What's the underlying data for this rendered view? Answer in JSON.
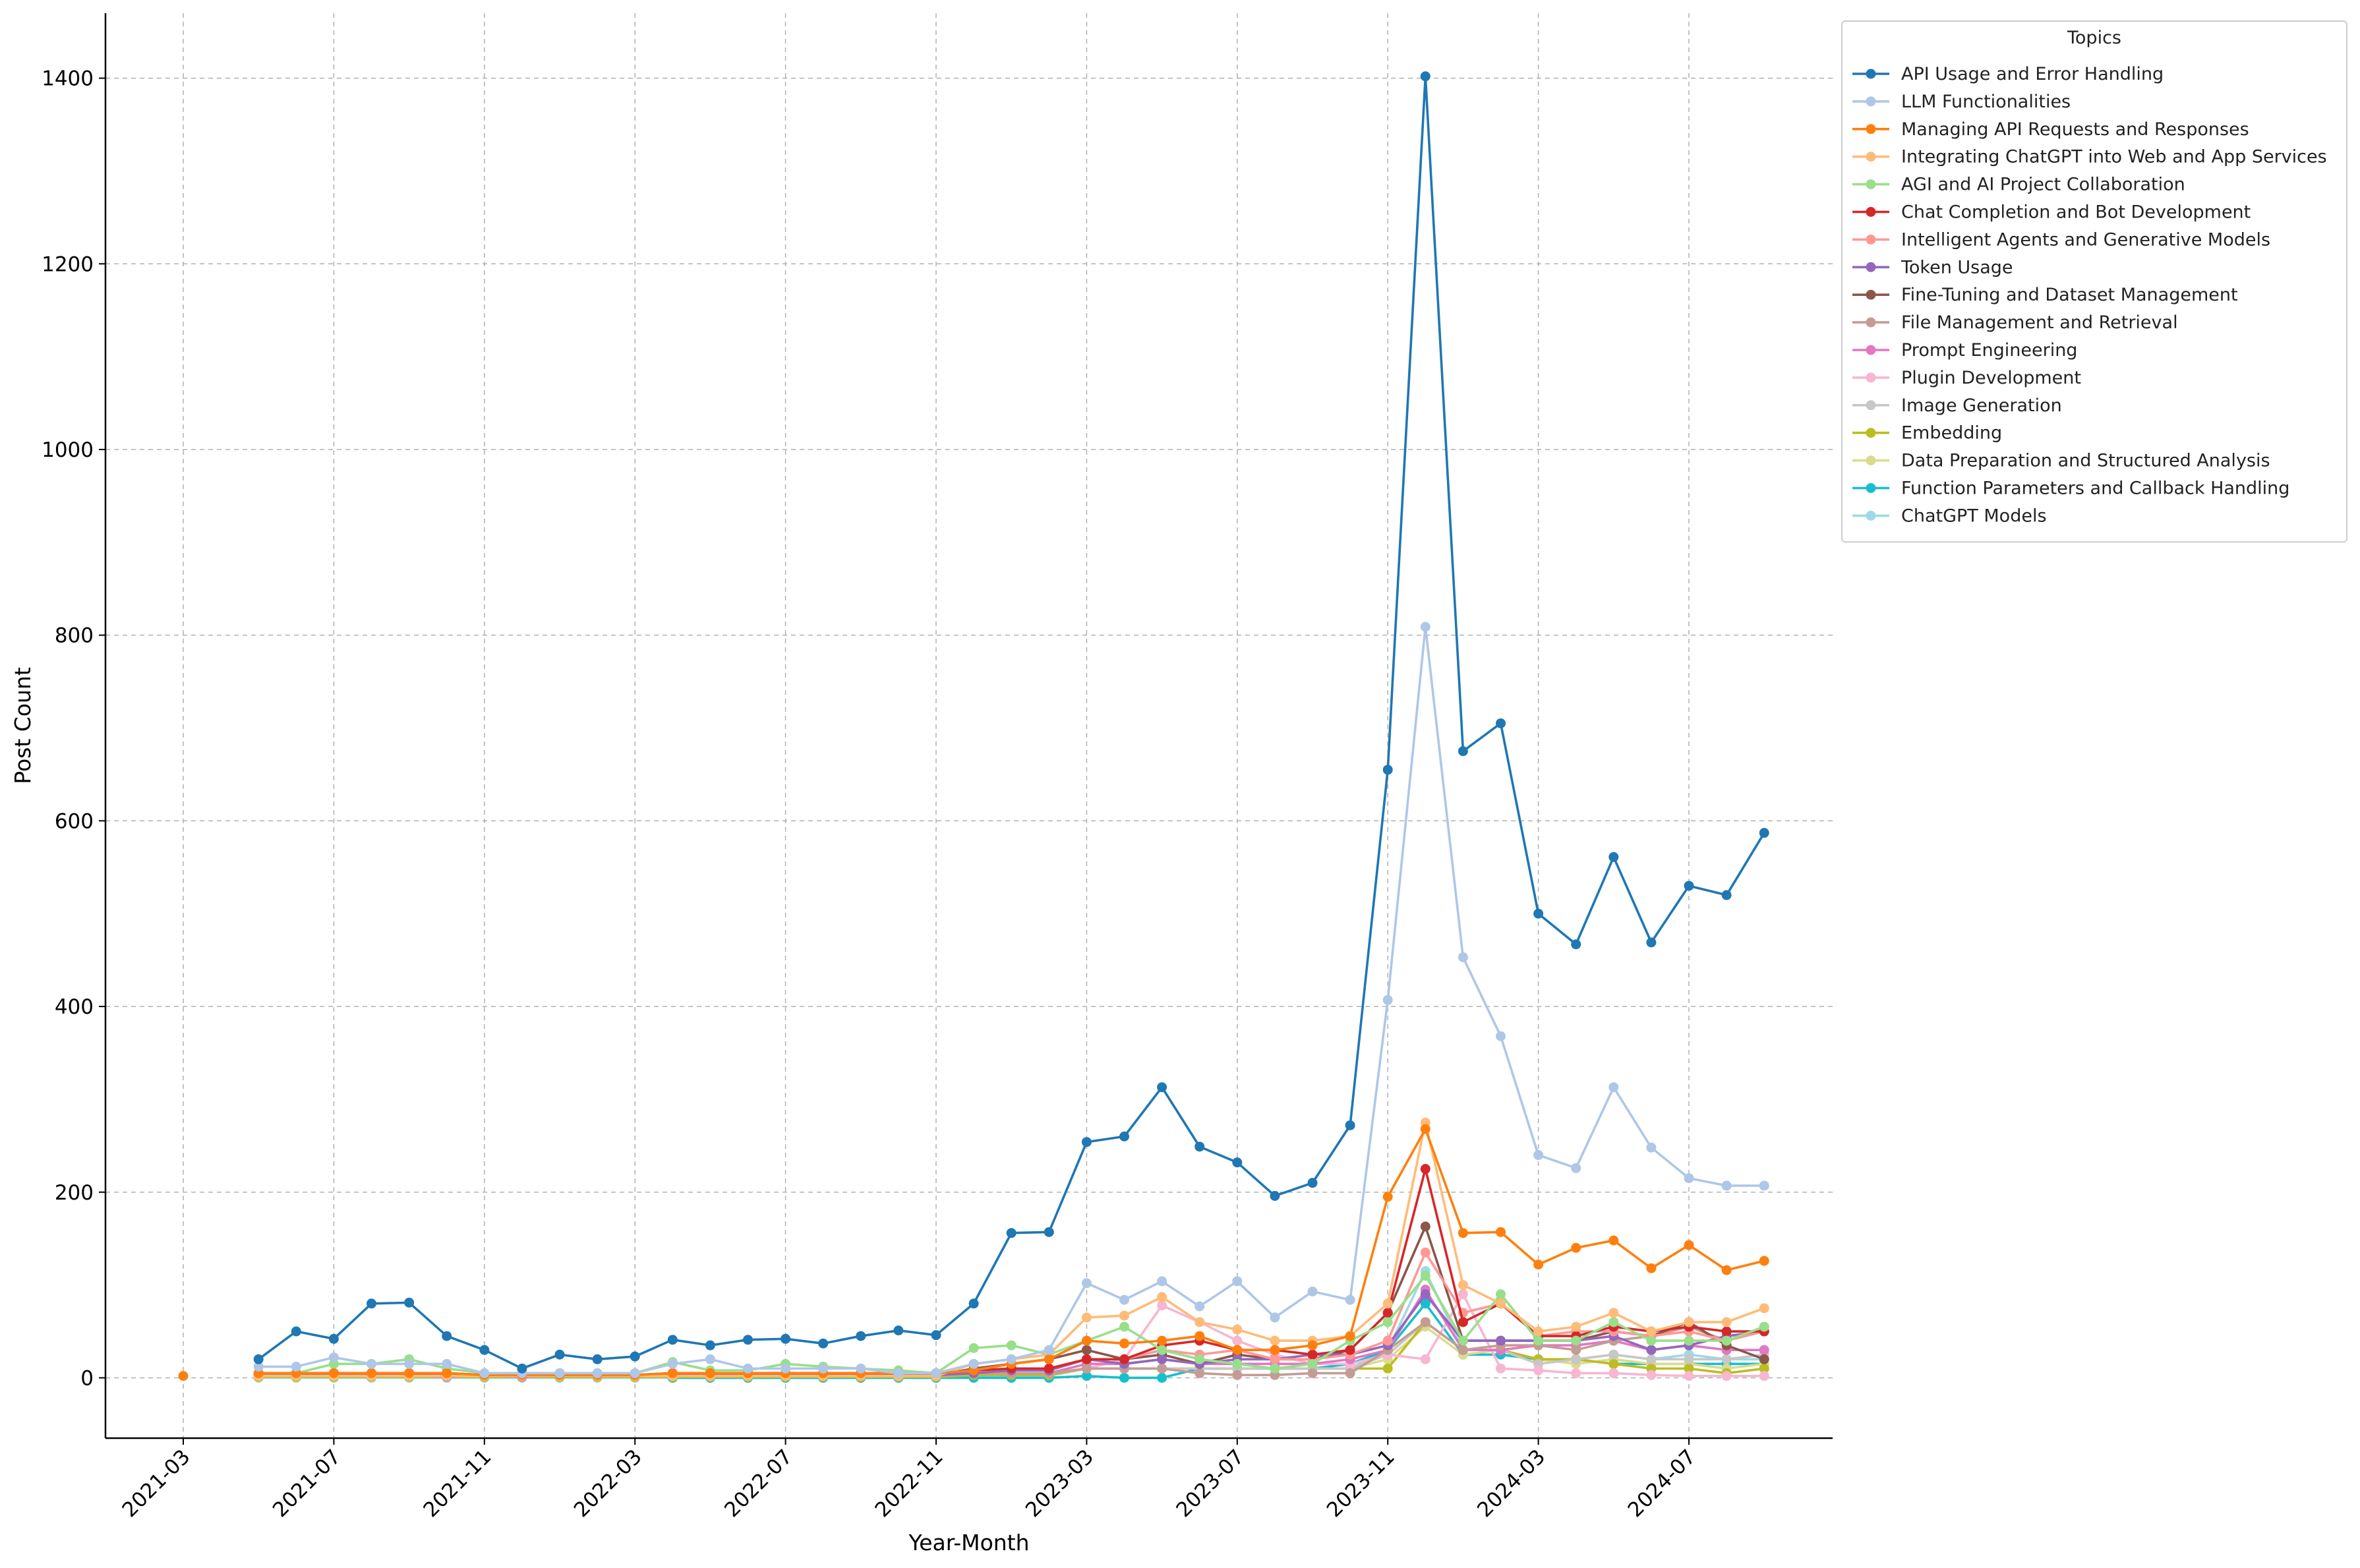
{
  "chart_data": {
    "type": "line",
    "title": "",
    "xlabel": "Year-Month",
    "ylabel": "Post Count",
    "ylim": [
      -65,
      1470
    ],
    "yticks": [
      0,
      200,
      400,
      600,
      800,
      1000,
      1200,
      1400
    ],
    "x": [
      "2021-03",
      "2021-04",
      "2021-05",
      "2021-06",
      "2021-07",
      "2021-08",
      "2021-09",
      "2021-10",
      "2021-11",
      "2021-12",
      "2022-01",
      "2022-02",
      "2022-03",
      "2022-04",
      "2022-05",
      "2022-06",
      "2022-07",
      "2022-08",
      "2022-09",
      "2022-10",
      "2022-11",
      "2022-12",
      "2023-01",
      "2023-02",
      "2023-03",
      "2023-04",
      "2023-05",
      "2023-06",
      "2023-07",
      "2023-08",
      "2023-09",
      "2023-10",
      "2023-11",
      "2023-12",
      "2024-01",
      "2024-02",
      "2024-03",
      "2024-04",
      "2024-05",
      "2024-06",
      "2024-07",
      "2024-08",
      "2024-09"
    ],
    "xticks": [
      "2021-03",
      "2021-07",
      "2021-11",
      "2022-03",
      "2022-07",
      "2022-11",
      "2023-03",
      "2023-07",
      "2023-11",
      "2024-03",
      "2024-07"
    ],
    "grid": true,
    "legend_title": "Topics",
    "legend_position": "upper right outside",
    "series": [
      {
        "name": "API Usage and Error Handling",
        "color": "#1f77b4",
        "values": [
          null,
          null,
          20,
          50,
          42,
          80,
          81,
          45,
          30,
          10,
          25,
          20,
          23,
          41,
          35,
          41,
          42,
          37,
          45,
          51,
          46,
          80,
          156,
          157,
          254,
          260,
          313,
          249,
          232,
          196,
          210,
          272,
          655,
          1402,
          675,
          705,
          500,
          467,
          561,
          469,
          530,
          520,
          587
        ]
      },
      {
        "name": "LLM Functionalities",
        "color": "#aec7e8",
        "values": [
          null,
          null,
          12,
          12,
          22,
          15,
          15,
          15,
          5,
          5,
          5,
          5,
          5,
          15,
          20,
          10,
          10,
          10,
          10,
          5,
          5,
          15,
          20,
          30,
          102,
          84,
          104,
          77,
          104,
          65,
          93,
          84,
          407,
          809,
          453,
          368,
          240,
          226,
          313,
          248,
          215,
          207,
          207
        ]
      },
      {
        "name": "Managing API Requests and Responses",
        "color": "#ff7f0e",
        "values": [
          2,
          null,
          5,
          5,
          5,
          5,
          5,
          5,
          3,
          3,
          3,
          3,
          3,
          5,
          5,
          5,
          5,
          5,
          5,
          5,
          5,
          8,
          15,
          20,
          40,
          37,
          40,
          45,
          30,
          30,
          35,
          45,
          195,
          268,
          156,
          157,
          122,
          140,
          148,
          118,
          143,
          116,
          126
        ]
      },
      {
        "name": "Integrating ChatGPT into Web and App Services",
        "color": "#ffbb78",
        "values": [
          null,
          null,
          2,
          2,
          2,
          2,
          2,
          2,
          2,
          2,
          2,
          2,
          2,
          2,
          2,
          2,
          2,
          2,
          2,
          2,
          2,
          15,
          20,
          25,
          65,
          67,
          87,
          60,
          52,
          40,
          40,
          45,
          80,
          275,
          100,
          80,
          50,
          55,
          70,
          50,
          60,
          60,
          75
        ]
      },
      {
        "name": "AGI and AI Project Collaboration",
        "color": "#98df8a",
        "values": [
          null,
          null,
          5,
          5,
          15,
          15,
          20,
          10,
          5,
          5,
          5,
          5,
          5,
          17,
          8,
          8,
          15,
          12,
          10,
          8,
          5,
          32,
          35,
          25,
          40,
          55,
          30,
          20,
          15,
          10,
          15,
          40,
          60,
          110,
          40,
          90,
          40,
          40,
          60,
          40,
          40,
          40,
          55
        ]
      },
      {
        "name": "Chat Completion and Bot Development",
        "color": "#d62728",
        "values": [
          null,
          null,
          5,
          5,
          5,
          5,
          5,
          5,
          3,
          3,
          3,
          3,
          3,
          5,
          5,
          5,
          5,
          5,
          5,
          5,
          5,
          8,
          10,
          10,
          20,
          20,
          35,
          40,
          30,
          30,
          25,
          30,
          70,
          225,
          60,
          80,
          45,
          45,
          55,
          50,
          55,
          50,
          50
        ]
      },
      {
        "name": "Intelligent Agents and Generative Models",
        "color": "#ff9896",
        "values": [
          null,
          null,
          5,
          5,
          5,
          5,
          5,
          5,
          3,
          3,
          3,
          3,
          3,
          5,
          5,
          5,
          5,
          5,
          5,
          5,
          5,
          8,
          10,
          10,
          20,
          20,
          30,
          25,
          30,
          20,
          20,
          25,
          40,
          135,
          70,
          80,
          45,
          50,
          50,
          45,
          50,
          40,
          50
        ]
      },
      {
        "name": "Token Usage",
        "color": "#9467bd",
        "values": [
          null,
          null,
          3,
          3,
          3,
          3,
          3,
          3,
          2,
          2,
          2,
          2,
          2,
          3,
          3,
          3,
          3,
          3,
          3,
          3,
          3,
          5,
          8,
          8,
          20,
          15,
          20,
          15,
          20,
          20,
          25,
          25,
          35,
          90,
          40,
          40,
          40,
          40,
          45,
          30,
          35,
          45,
          50
        ]
      },
      {
        "name": "Fine-Tuning and Dataset Management",
        "color": "#8c564b",
        "values": [
          null,
          null,
          3,
          3,
          3,
          3,
          3,
          3,
          2,
          2,
          2,
          2,
          2,
          3,
          3,
          3,
          3,
          3,
          3,
          3,
          3,
          10,
          15,
          20,
          30,
          20,
          25,
          15,
          25,
          20,
          20,
          30,
          70,
          163,
          40,
          40,
          40,
          40,
          50,
          45,
          60,
          35,
          20
        ]
      },
      {
        "name": "File Management and Retrieval",
        "color": "#c49c94",
        "values": [
          null,
          null,
          2,
          2,
          2,
          2,
          2,
          2,
          2,
          2,
          2,
          2,
          2,
          2,
          2,
          2,
          2,
          2,
          2,
          2,
          2,
          5,
          5,
          5,
          10,
          10,
          10,
          5,
          3,
          3,
          5,
          5,
          30,
          60,
          30,
          35,
          35,
          30,
          40,
          45,
          55,
          40,
          55
        ]
      },
      {
        "name": "Prompt Engineering",
        "color": "#e377c2",
        "values": [
          null,
          null,
          3,
          3,
          3,
          3,
          3,
          1,
          3,
          1,
          3,
          3,
          3,
          3,
          3,
          3,
          3,
          3,
          3,
          3,
          3,
          5,
          5,
          5,
          15,
          15,
          20,
          15,
          15,
          15,
          15,
          20,
          30,
          95,
          30,
          30,
          35,
          35,
          40,
          30,
          35,
          30,
          30
        ]
      },
      {
        "name": "Plugin Development",
        "color": "#f7b6d2",
        "values": [
          null,
          null,
          2,
          2,
          2,
          2,
          2,
          2,
          2,
          2,
          2,
          2,
          2,
          2,
          2,
          2,
          2,
          2,
          2,
          2,
          2,
          5,
          5,
          5,
          10,
          20,
          78,
          60,
          40,
          25,
          15,
          15,
          25,
          20,
          90,
          10,
          8,
          5,
          5,
          3,
          2,
          2,
          2
        ]
      },
      {
        "name": "Image Generation",
        "color": "#c7c7c7",
        "values": [
          null,
          null,
          3,
          3,
          3,
          3,
          3,
          3,
          2,
          2,
          2,
          2,
          2,
          3,
          3,
          3,
          3,
          3,
          3,
          3,
          3,
          5,
          5,
          5,
          10,
          10,
          10,
          10,
          10,
          10,
          10,
          10,
          25,
          60,
          30,
          30,
          15,
          20,
          25,
          20,
          20,
          20,
          25
        ]
      },
      {
        "name": "Embedding",
        "color": "#bcbd22",
        "values": [
          null,
          null,
          1,
          1,
          1,
          1,
          1,
          1,
          1,
          1,
          1,
          1,
          1,
          1,
          1,
          1,
          1,
          1,
          1,
          1,
          1,
          3,
          3,
          3,
          10,
          10,
          10,
          10,
          10,
          10,
          10,
          10,
          10,
          60,
          30,
          30,
          20,
          20,
          15,
          10,
          10,
          5,
          10
        ]
      },
      {
        "name": "Data Preparation and Structured Analysis",
        "color": "#dbdb8d",
        "values": [
          null,
          null,
          1,
          1,
          1,
          1,
          1,
          1,
          1,
          1,
          1,
          1,
          1,
          1,
          1,
          1,
          1,
          1,
          1,
          1,
          1,
          3,
          3,
          3,
          10,
          10,
          10,
          10,
          10,
          10,
          10,
          10,
          20,
          55,
          25,
          30,
          20,
          15,
          20,
          15,
          15,
          10,
          15
        ]
      },
      {
        "name": "Function Parameters and Callback Handling",
        "color": "#17becf",
        "values": [
          null,
          null,
          null,
          null,
          null,
          null,
          null,
          null,
          null,
          null,
          null,
          null,
          null,
          0,
          0,
          0,
          0,
          0,
          0,
          0,
          0,
          0,
          0,
          0,
          2,
          0,
          0,
          10,
          10,
          10,
          10,
          15,
          30,
          80,
          25,
          25,
          20,
          20,
          15,
          15,
          15,
          15,
          15
        ]
      },
      {
        "name": "ChatGPT Models",
        "color": "#9edae5",
        "values": [
          null,
          null,
          0,
          0,
          0,
          0,
          0,
          0,
          0,
          0,
          0,
          0,
          0,
          0,
          0,
          0,
          0,
          0,
          0,
          0,
          0,
          2,
          2,
          2,
          10,
          10,
          10,
          10,
          10,
          10,
          10,
          10,
          30,
          115,
          30,
          30,
          20,
          20,
          25,
          20,
          25,
          20,
          20
        ]
      }
    ]
  }
}
